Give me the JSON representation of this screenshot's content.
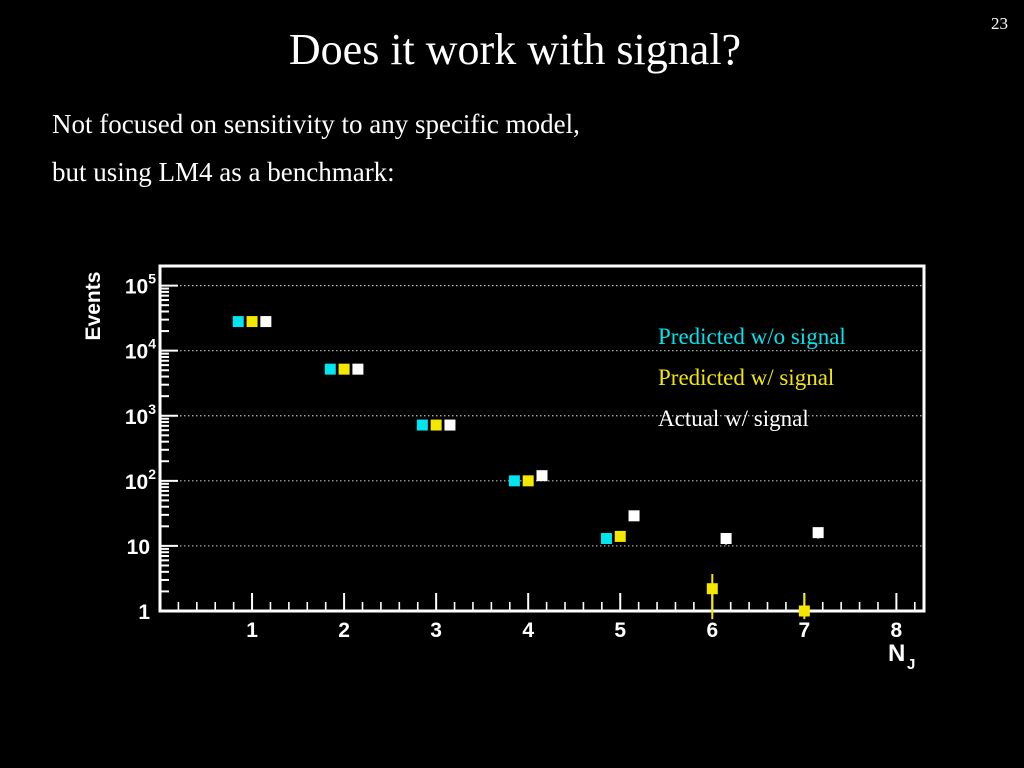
{
  "slide_number": "23",
  "title": "Does it work with signal?",
  "body": [
    "Not focused on sensitivity to any specific model,",
    "but using LM4 as a benchmark:"
  ],
  "chart_data": {
    "type": "scatter",
    "xlabel": "N",
    "xlabel_subscript": "J",
    "ylabel": "Events",
    "yscale": "log",
    "ylim": [
      1,
      200000
    ],
    "xlim": [
      0,
      8.3
    ],
    "x_ticks": [
      "1",
      "2",
      "3",
      "4",
      "5",
      "6",
      "7",
      "8"
    ],
    "y_ticks": [
      {
        "base": "1",
        "exp": ""
      },
      {
        "base": "10",
        "exp": ""
      },
      {
        "base": "10",
        "exp": "2"
      },
      {
        "base": "10",
        "exp": "3"
      },
      {
        "base": "10",
        "exp": "4"
      },
      {
        "base": "10",
        "exp": "5"
      }
    ],
    "grid": "horizontal-dotted",
    "legend_position": "top-right",
    "background": "#000000",
    "frame_color": "#ffffff",
    "series": [
      {
        "name": "Predicted w/o signal",
        "color": "#00e5ee",
        "offset": -0.15,
        "x": [
          1,
          2,
          3,
          4,
          5
        ],
        "y": [
          28000,
          5200,
          720,
          100,
          13
        ],
        "yerr": [
          0,
          0,
          0,
          0,
          1.5
        ]
      },
      {
        "name": "Predicted w/ signal",
        "color": "#f5e800",
        "offset": 0.0,
        "x": [
          1,
          2,
          3,
          4,
          5,
          6,
          7
        ],
        "y": [
          28000,
          5200,
          720,
          100,
          14,
          2.2,
          1
        ],
        "yerr": [
          0,
          0,
          0,
          0,
          2,
          1.5,
          0.8
        ]
      },
      {
        "name": "Actual w/ signal",
        "color": "#ffffff",
        "offset": 0.15,
        "x": [
          1,
          2,
          3,
          4,
          5,
          6,
          7
        ],
        "y": [
          28000,
          5200,
          720,
          120,
          29,
          13,
          16
        ],
        "yerr": [
          0,
          0,
          0,
          10,
          4,
          2.5,
          3
        ]
      }
    ]
  }
}
